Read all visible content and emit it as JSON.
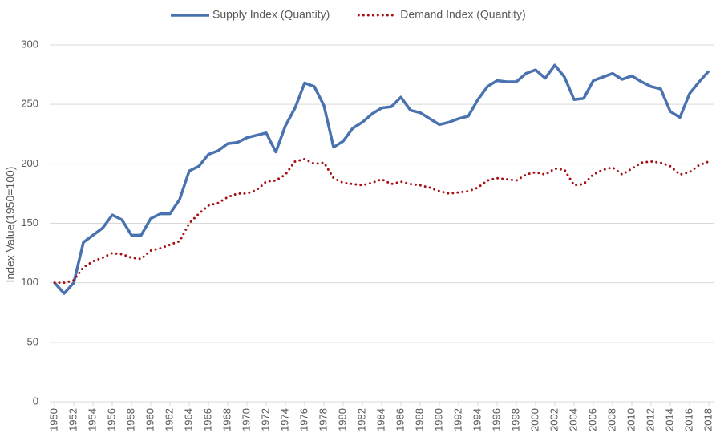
{
  "chart_data": {
    "type": "line",
    "ylabel": "Index Value(1950=100)",
    "x": [
      1950,
      1951,
      1952,
      1953,
      1954,
      1955,
      1956,
      1957,
      1958,
      1959,
      1960,
      1961,
      1962,
      1963,
      1964,
      1965,
      1966,
      1967,
      1968,
      1969,
      1970,
      1971,
      1972,
      1973,
      1974,
      1975,
      1976,
      1977,
      1978,
      1979,
      1980,
      1981,
      1982,
      1983,
      1984,
      1985,
      1986,
      1987,
      1988,
      1989,
      1990,
      1991,
      1992,
      1993,
      1994,
      1995,
      1996,
      1997,
      1998,
      1999,
      2000,
      2001,
      2002,
      2003,
      2004,
      2005,
      2006,
      2007,
      2008,
      2009,
      2010,
      2011,
      2012,
      2013,
      2014,
      2015,
      2016,
      2017,
      2018
    ],
    "xlim": [
      1950,
      2018
    ],
    "xticks": [
      1950,
      1952,
      1954,
      1956,
      1958,
      1960,
      1962,
      1964,
      1966,
      1968,
      1970,
      1972,
      1974,
      1976,
      1978,
      1980,
      1982,
      1984,
      1986,
      1988,
      1990,
      1992,
      1994,
      1996,
      1998,
      2000,
      2002,
      2004,
      2006,
      2008,
      2010,
      2012,
      2014,
      2016,
      2018
    ],
    "ylim": [
      0,
      300
    ],
    "yticks": [
      0,
      50,
      100,
      150,
      200,
      250,
      300
    ],
    "grid": true,
    "legend": "top",
    "series": [
      {
        "name": "Supply Index (Quantity)",
        "color": "#4a72b0",
        "style": "solid",
        "values": [
          100,
          91,
          100,
          134,
          140,
          146,
          157,
          153,
          140,
          140,
          154,
          158,
          158,
          170,
          194,
          198,
          208,
          211,
          217,
          218,
          222,
          224,
          226,
          210,
          232,
          247,
          268,
          265,
          249,
          214,
          219,
          230,
          235,
          242,
          247,
          248,
          256,
          245,
          243,
          238,
          233,
          235,
          238,
          240,
          254,
          265,
          270,
          269,
          269,
          276,
          279,
          272,
          283,
          273,
          254,
          255,
          270,
          273,
          276,
          271,
          274,
          269,
          265,
          263,
          244,
          239,
          259,
          269,
          278
        ]
      },
      {
        "name": "Demand Index (Quantity)",
        "color": "#a50f15",
        "style": "dotted",
        "values": [
          100,
          100,
          102,
          113,
          118,
          121,
          125,
          124,
          121,
          120,
          127,
          129,
          132,
          135,
          150,
          158,
          165,
          167,
          172,
          175,
          175,
          178,
          185,
          186,
          191,
          202,
          204,
          200,
          201,
          188,
          184,
          183,
          182,
          184,
          187,
          183,
          185,
          183,
          182,
          180,
          177,
          175,
          176,
          177,
          180,
          186,
          188,
          187,
          186,
          191,
          193,
          191,
          196,
          195,
          182,
          183,
          191,
          195,
          197,
          191,
          196,
          201,
          202,
          201,
          198,
          191,
          193,
          199,
          202
        ]
      }
    ]
  }
}
